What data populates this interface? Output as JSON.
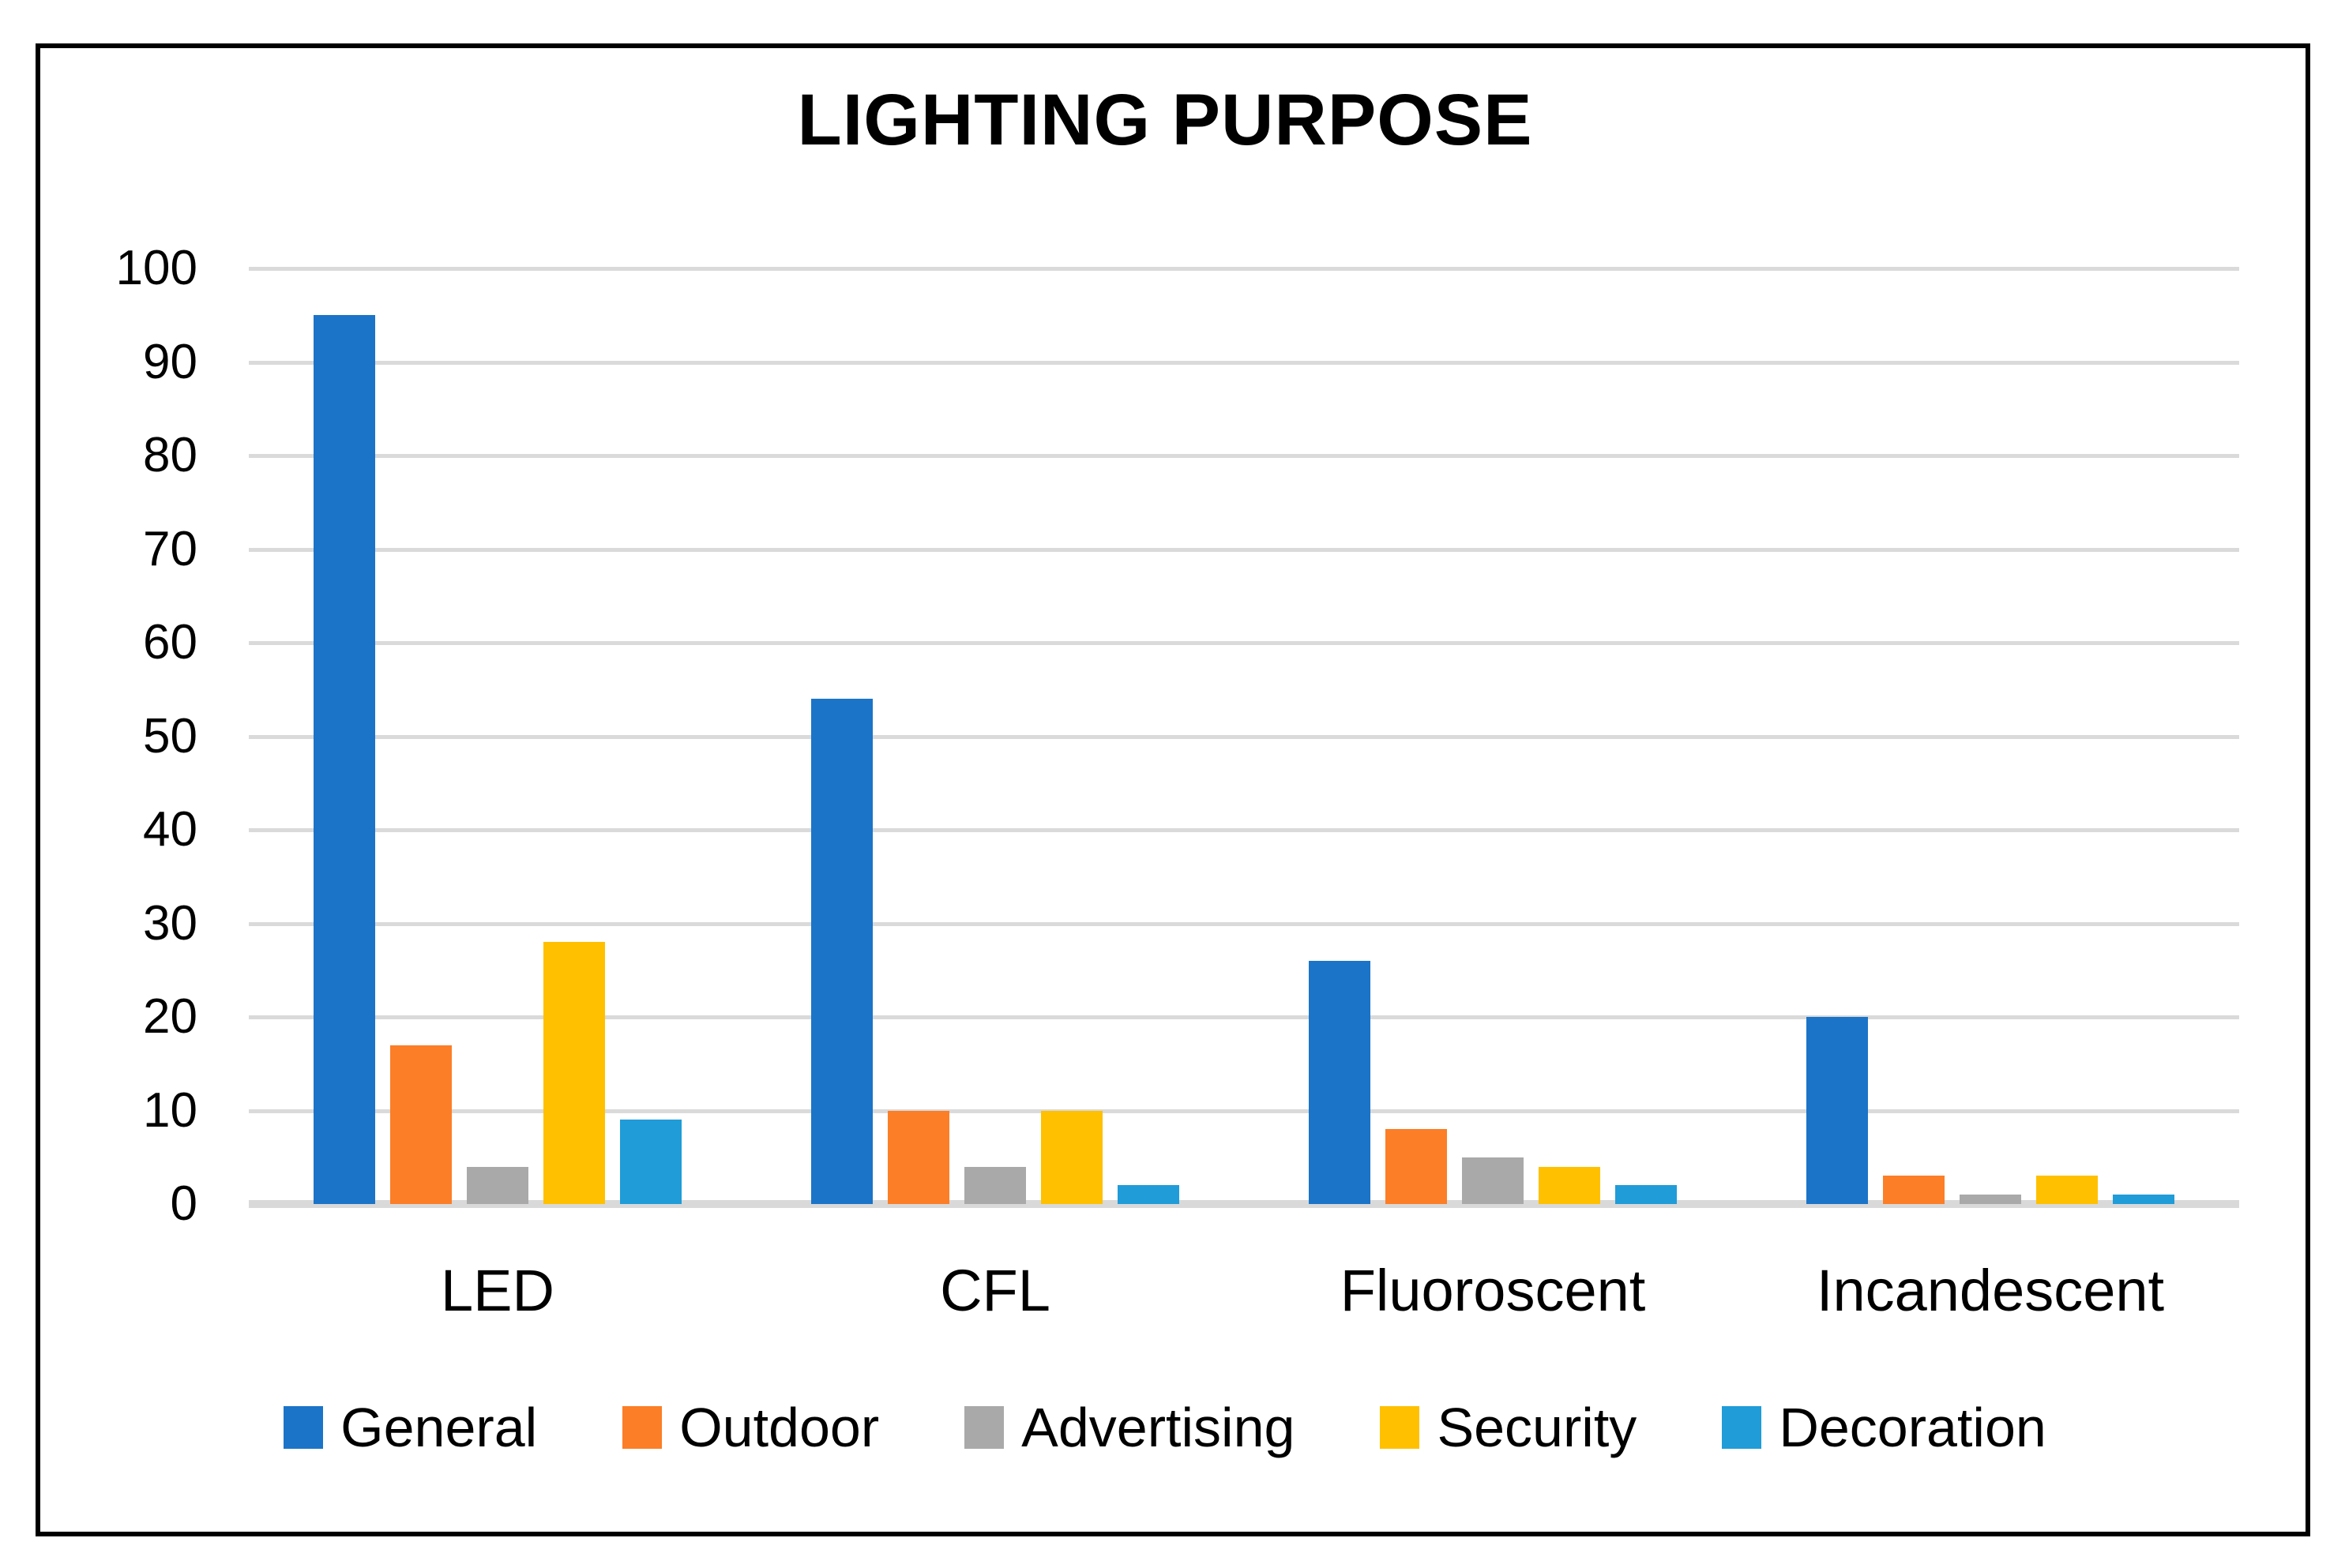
{
  "title": "LIGHTING PURPOSE",
  "colors": {
    "background": "#FFFFFF",
    "border": "#000000",
    "gridline": "#DADADA",
    "axis_line": "#D9D9D9",
    "text": "#000000"
  },
  "chart_data": {
    "type": "bar",
    "title": "LIGHTING PURPOSE",
    "categories": [
      "LED",
      "CFL",
      "Fluoroscent",
      "Incandescent"
    ],
    "series": [
      {
        "name": "General",
        "color": "#1B74C8",
        "values": [
          95,
          54,
          26,
          20
        ]
      },
      {
        "name": "Outdoor",
        "color": "#FC7E27",
        "values": [
          17,
          10,
          8,
          3
        ]
      },
      {
        "name": "Advertising",
        "color": "#A9A9A9",
        "values": [
          4,
          4,
          5,
          1
        ]
      },
      {
        "name": "Security",
        "color": "#FFC000",
        "values": [
          28,
          10,
          4,
          3
        ]
      },
      {
        "name": "Decoration",
        "color": "#209CD8",
        "values": [
          9,
          2,
          2,
          1
        ]
      }
    ],
    "xlabel": "",
    "ylabel": "",
    "ylim": [
      0,
      100
    ],
    "ytick_step": 10,
    "yticks": [
      0,
      10,
      20,
      30,
      40,
      50,
      60,
      70,
      80,
      90,
      100
    ],
    "grid": true,
    "legend_position": "bottom"
  }
}
